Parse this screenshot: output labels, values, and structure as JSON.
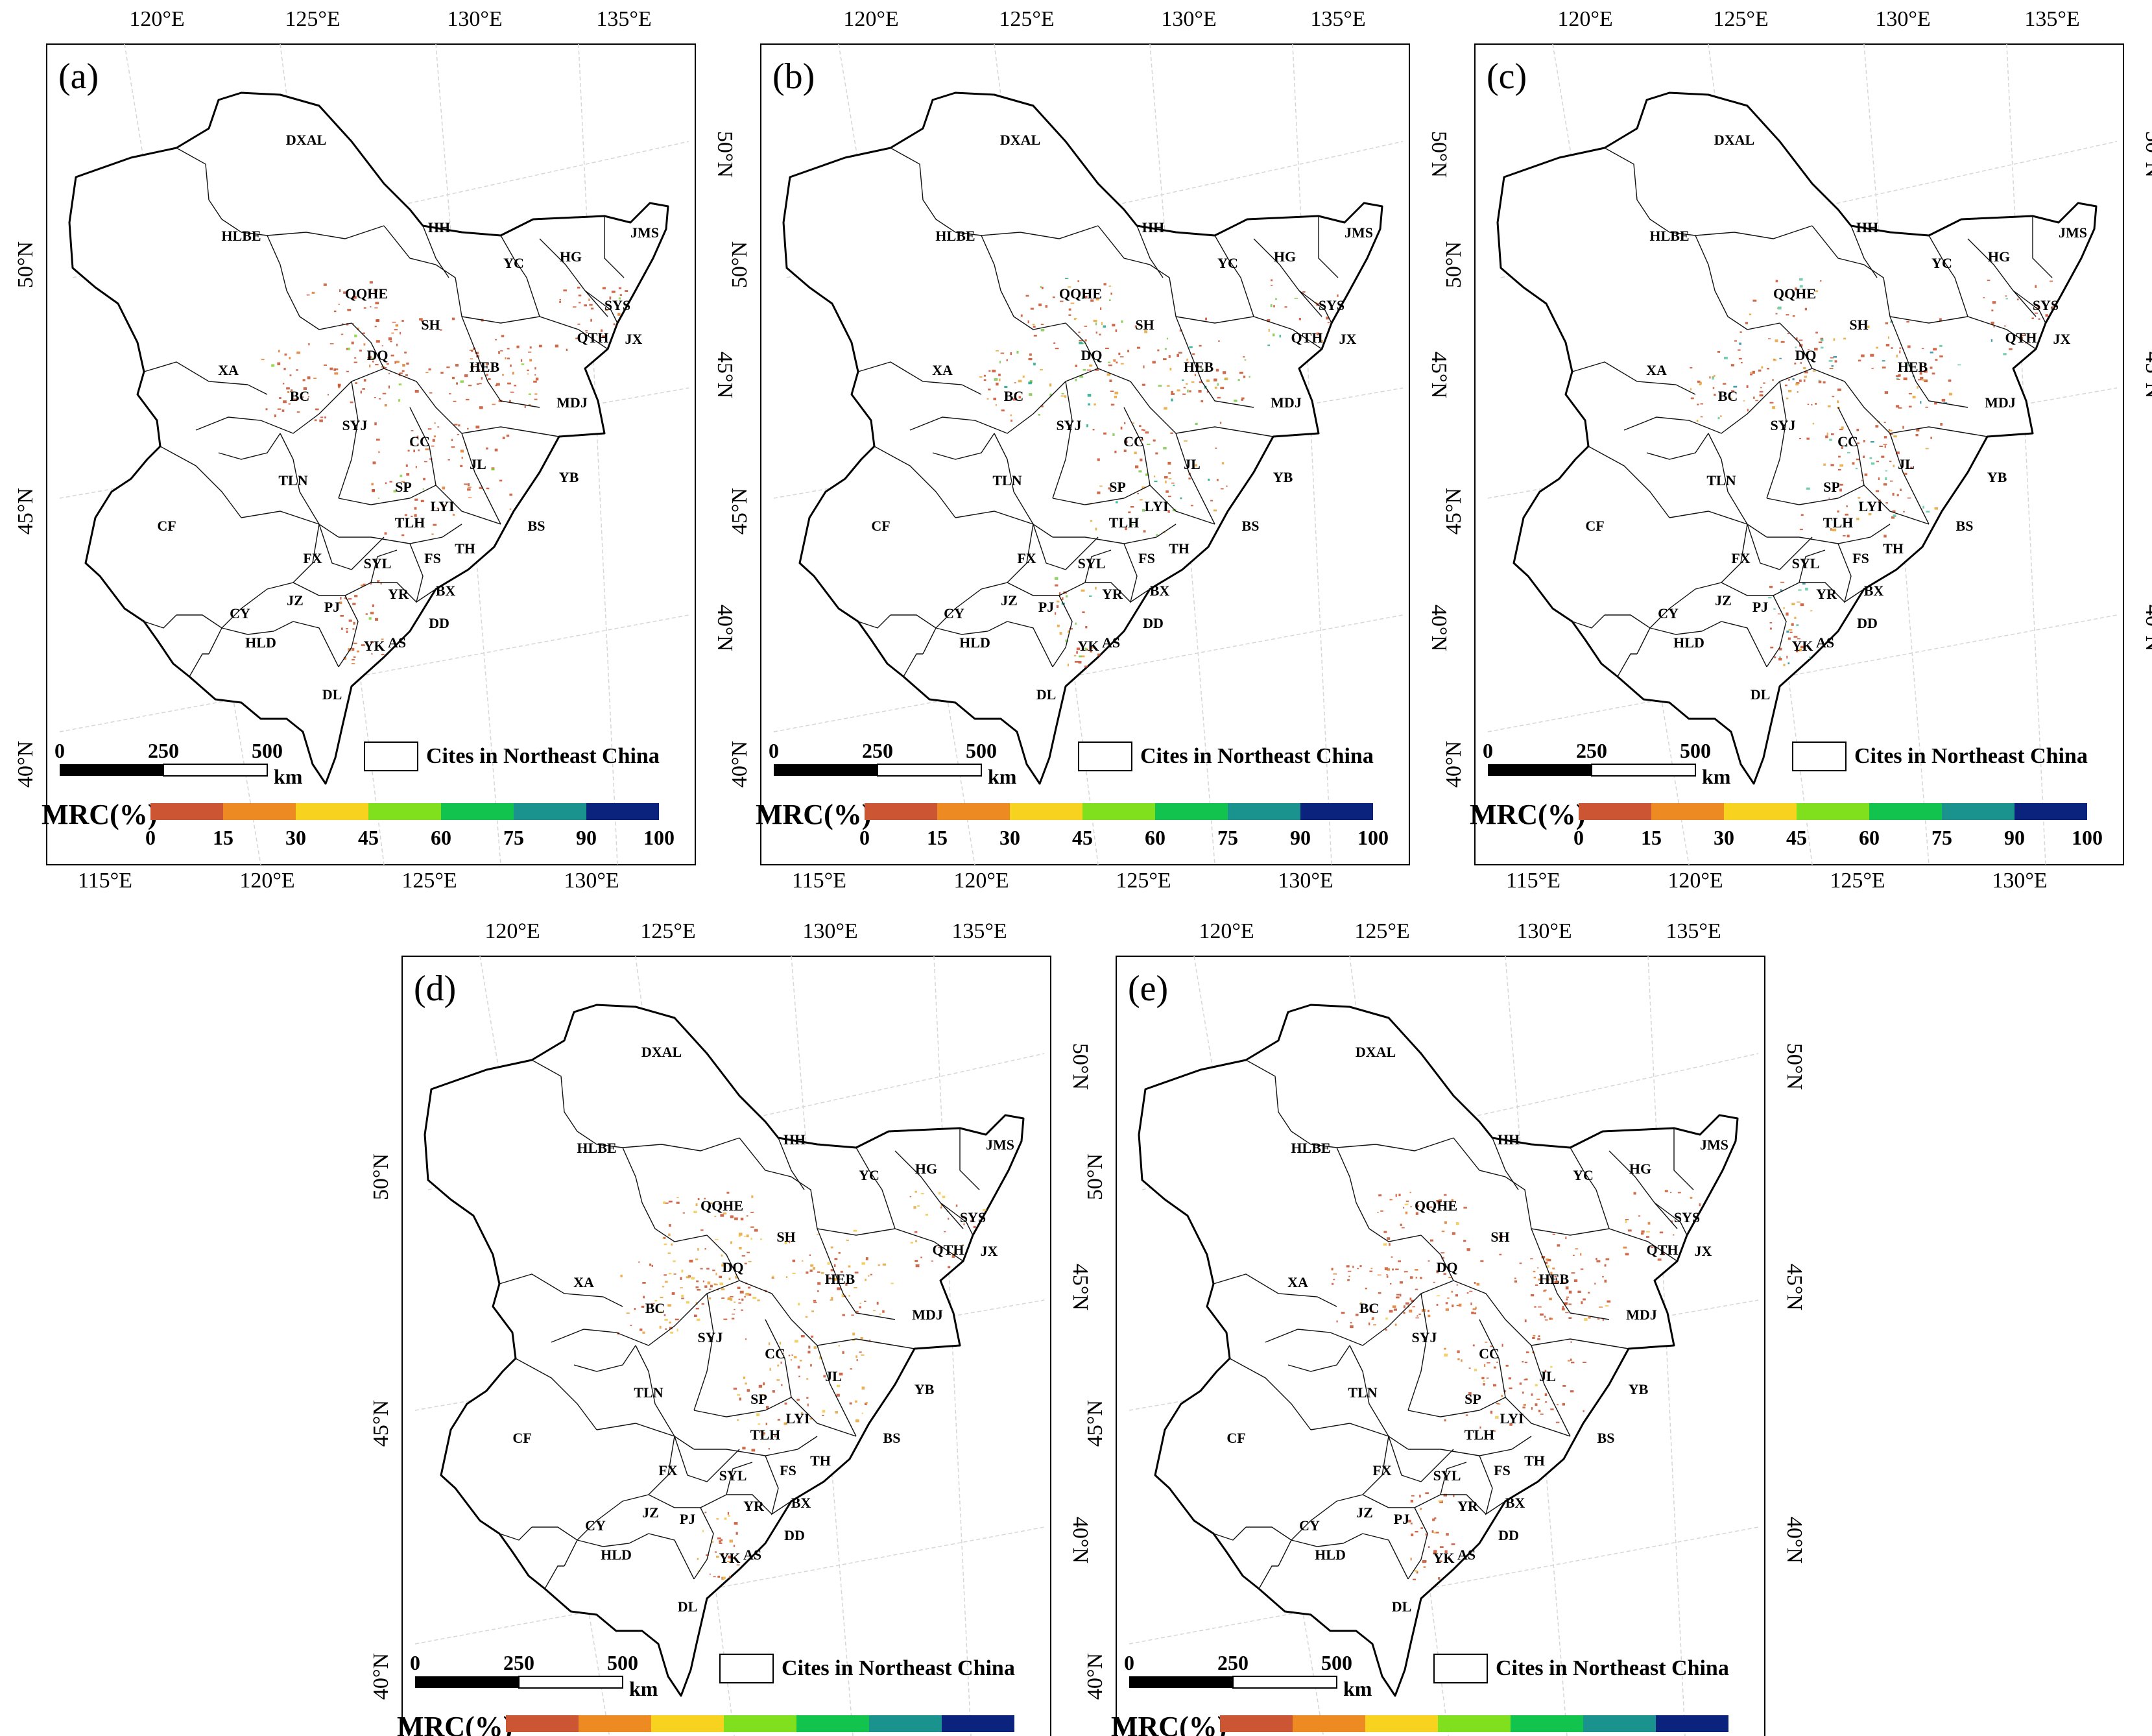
{
  "figure": {
    "panels": [
      {
        "label": "(a)",
        "dots": [
          [
            "#c8502e",
            70
          ],
          [
            "#e07a2e",
            14
          ],
          [
            "#8ad03a",
            4
          ]
        ]
      },
      {
        "label": "(b)",
        "dots": [
          [
            "#c8502e",
            45
          ],
          [
            "#e8a33a",
            18
          ],
          [
            "#7ac84a",
            14
          ],
          [
            "#1fa88a",
            6
          ]
        ]
      },
      {
        "label": "(c)",
        "dots": [
          [
            "#c8502e",
            55
          ],
          [
            "#e8a33a",
            16
          ],
          [
            "#5fc7a0",
            10
          ],
          [
            "#2a8a9a",
            4
          ]
        ]
      },
      {
        "label": "(d)",
        "dots": [
          [
            "#c8502e",
            50
          ],
          [
            "#e8a33a",
            28
          ],
          [
            "#f2c94c",
            14
          ]
        ]
      },
      {
        "label": "(e)",
        "dots": [
          [
            "#c8502e",
            65
          ],
          [
            "#e07a2e",
            16
          ],
          [
            "#f2c94c",
            5
          ]
        ]
      }
    ],
    "top_longitudes": [
      "120°E",
      "125°E",
      "130°E",
      "135°E"
    ],
    "bottom_longitudes": [
      "115°E",
      "120°E",
      "125°E",
      "130°E"
    ],
    "left_latitudes": [
      "50°N",
      "45°N",
      "40°N"
    ],
    "right_latitudes": [
      "50°N",
      "45°N",
      "40°N"
    ],
    "cities": [
      "DXAL",
      "HLBE",
      "HH",
      "JMS",
      "YC",
      "HG",
      "QQHE",
      "SYS",
      "SH",
      "QTH",
      "JX",
      "XA",
      "DQ",
      "HEB",
      "BC",
      "MDJ",
      "SYJ",
      "CC",
      "JL",
      "YB",
      "TLN",
      "SP",
      "LYI",
      "CF",
      "TLH",
      "BS",
      "FX",
      "SYL",
      "FS",
      "TH",
      "YR",
      "BX",
      "JZ",
      "PJ",
      "CY",
      "DD",
      "HLD",
      "YK",
      "AS",
      "DL"
    ],
    "scale_bar": {
      "ticks": [
        "0",
        "250",
        "500"
      ],
      "unit": "km"
    },
    "boundary_legend": "Cites in Northeast China",
    "colorbar": {
      "title": "MRC(%)",
      "ticks": [
        "0",
        "15",
        "30",
        "45",
        "60",
        "75",
        "90",
        "100"
      ],
      "colors": [
        "#cc5533",
        "#ee8a22",
        "#f7d21e",
        "#80e01e",
        "#12c34e",
        "#1a938f",
        "#0c237e"
      ]
    }
  }
}
